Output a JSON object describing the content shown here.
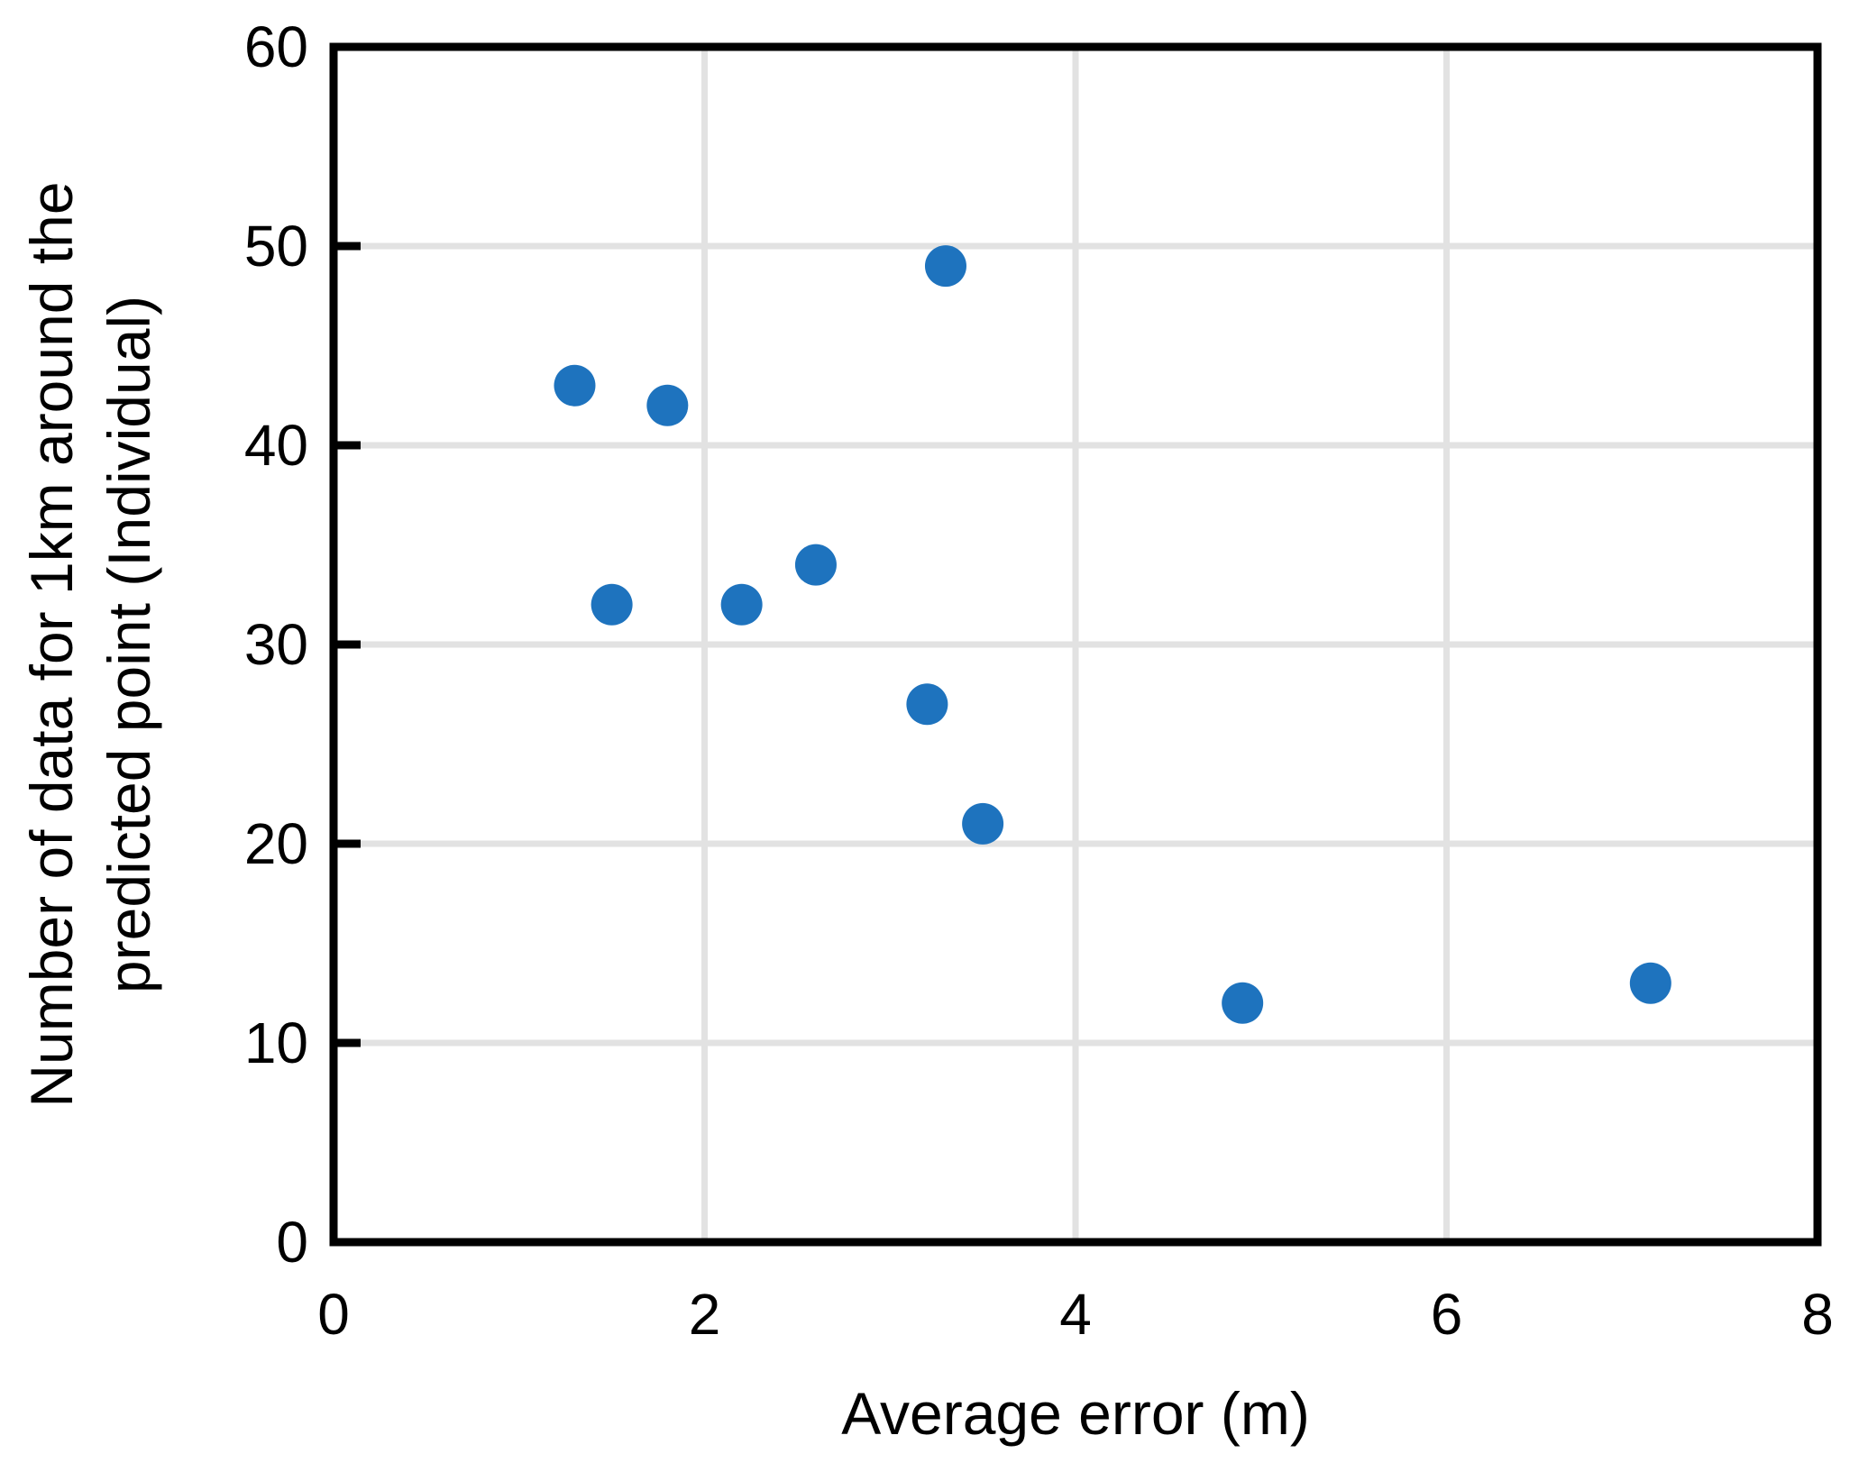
{
  "figure": {
    "background": "#FFFFFF"
  },
  "chart_data": {
    "type": "scatter",
    "title": "",
    "xlabel": "Average error (m)",
    "ylabel": "Number of data for 1km around the predicted point (Individual)",
    "ylabel_lines": [
      "Number of data for 1km around the",
      "predicted point (Individual)"
    ],
    "points": [
      {
        "x": 1.3,
        "y": 43
      },
      {
        "x": 1.5,
        "y": 32
      },
      {
        "x": 1.8,
        "y": 42
      },
      {
        "x": 2.2,
        "y": 32
      },
      {
        "x": 2.6,
        "y": 34
      },
      {
        "x": 3.2,
        "y": 27
      },
      {
        "x": 3.3,
        "y": 49
      },
      {
        "x": 3.5,
        "y": 21
      },
      {
        "x": 4.9,
        "y": 12
      },
      {
        "x": 7.1,
        "y": 13
      }
    ],
    "xlim": [
      0,
      8
    ],
    "ylim": [
      0,
      60
    ],
    "xticks": [
      0,
      2,
      4,
      6,
      8
    ],
    "yticks": [
      0,
      10,
      20,
      30,
      40,
      50,
      60
    ],
    "grid": true,
    "legend": null,
    "colors": {
      "marker": "#1E73BE",
      "gridline": "#E2E2E2",
      "axis": "#000000",
      "text": "#000000"
    }
  }
}
